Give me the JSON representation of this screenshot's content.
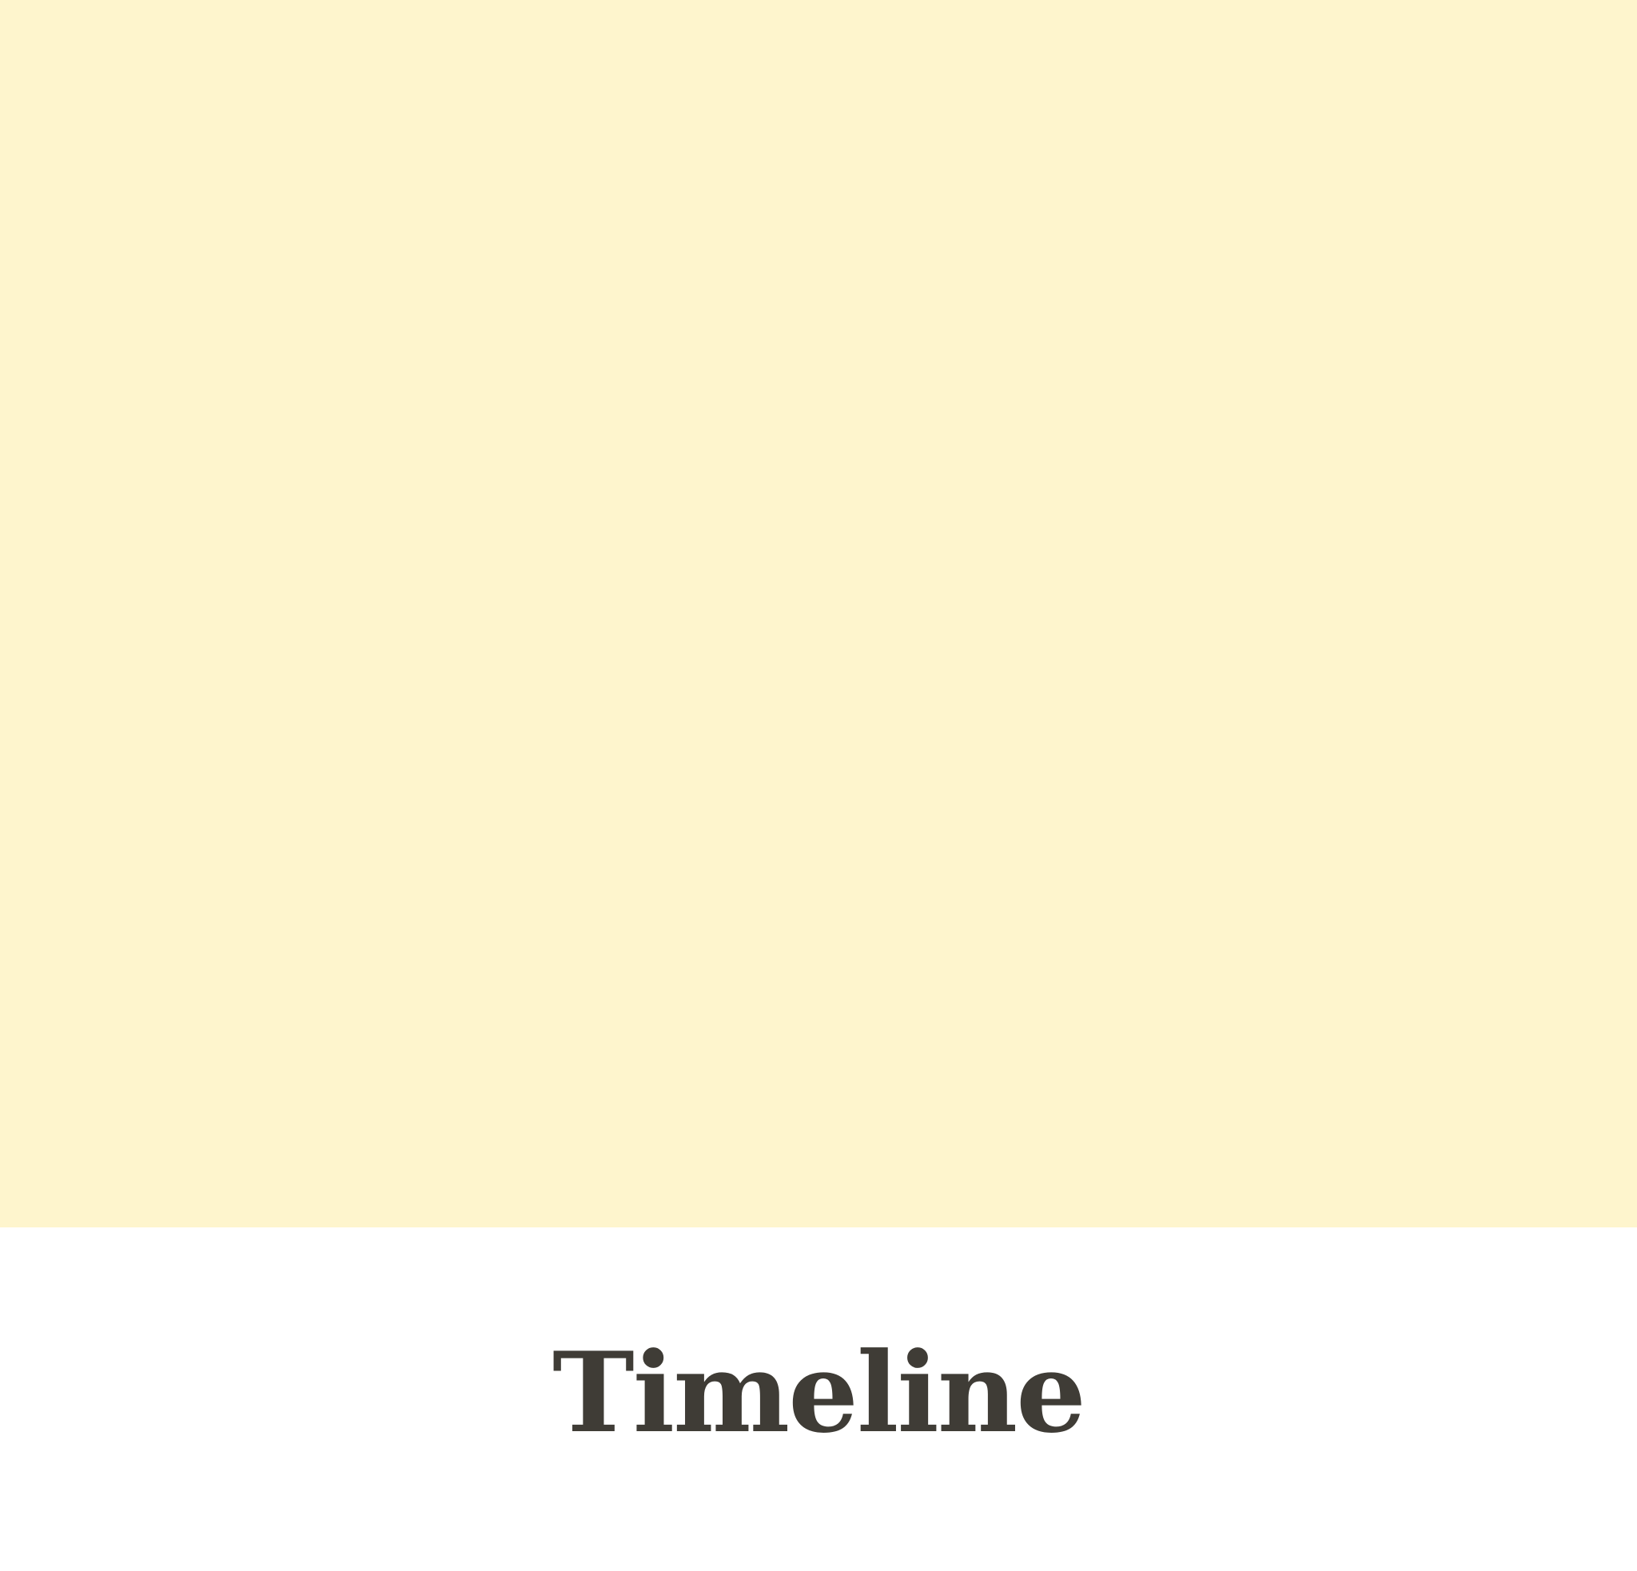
{
  "hero": {
    "background_color": "#fef5cd"
  },
  "footer": {
    "title": "Timeline",
    "title_color": "#3f3c36"
  }
}
